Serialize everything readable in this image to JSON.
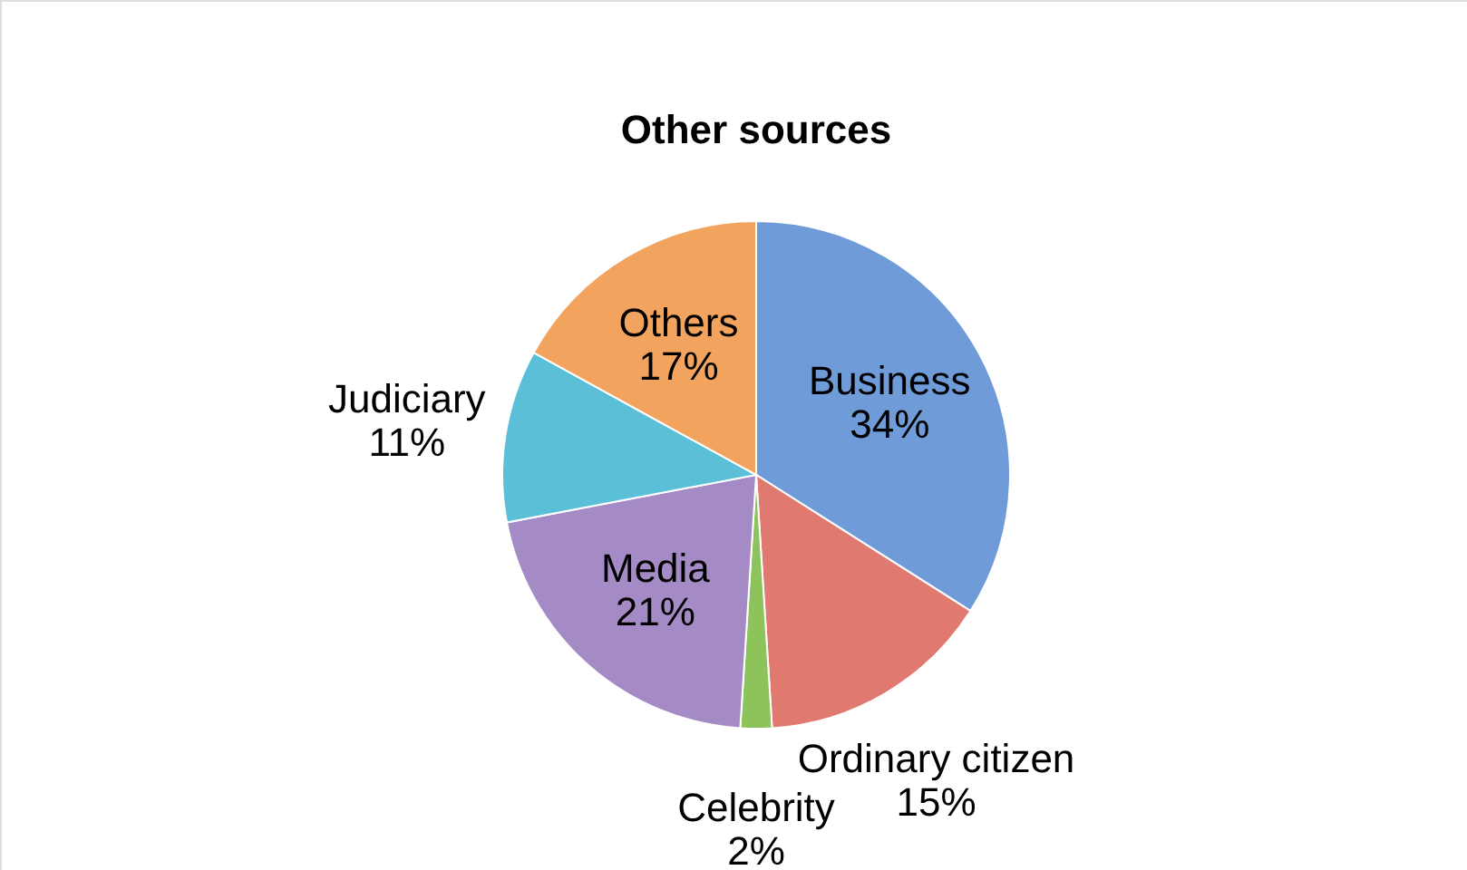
{
  "chart_data": {
    "type": "pie",
    "title": "Other sources",
    "categories": [
      "Business",
      "Ordinary citizen",
      "Celebrity",
      "Media",
      "Judiciary",
      "Others"
    ],
    "values": [
      34,
      15,
      2,
      21,
      11,
      17
    ],
    "value_labels": [
      "34%",
      "15%",
      "2%",
      "21%",
      "11%",
      "17%"
    ],
    "colors": [
      "#6f9bd8",
      "#e07a70",
      "#8cc35a",
      "#a58bc6",
      "#5bbfd8",
      "#f2a45f"
    ]
  }
}
